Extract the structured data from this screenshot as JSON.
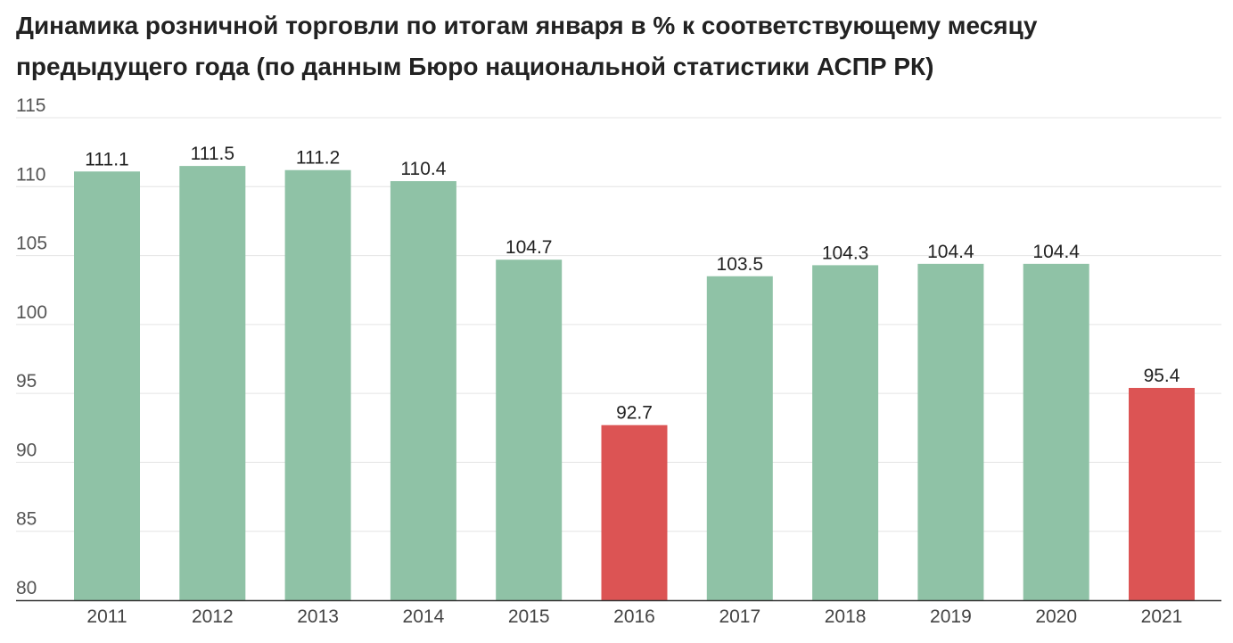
{
  "chart_data": {
    "type": "bar",
    "title": "Динамика розничной торговли по итогам января в % к соответствующему месяцу предыдущего года (по данным Бюро национальной статистики АСПР РК)",
    "categories": [
      "2011",
      "2012",
      "2013",
      "2014",
      "2015",
      "2016",
      "2017",
      "2018",
      "2019",
      "2020",
      "2021"
    ],
    "values": [
      111.1,
      111.5,
      111.2,
      110.4,
      104.7,
      92.7,
      103.5,
      104.3,
      104.4,
      104.4,
      95.4
    ],
    "data_labels": [
      "111.1",
      "111.5",
      "111.2",
      "110.4",
      "104.7",
      "92.7",
      "103.5",
      "104.3",
      "104.4",
      "104.4",
      "95.4"
    ],
    "ylim": [
      80,
      115
    ],
    "yticks": [
      80,
      85,
      90,
      95,
      100,
      105,
      110,
      115
    ],
    "ytick_labels": [
      "80",
      "85",
      "90",
      "95",
      "100",
      "105",
      "110",
      "115"
    ],
    "grid": true,
    "legend": "none",
    "colors": {
      "positive": "#8fc2a6",
      "negative": "#dc5454",
      "grid": "#e4e4e4",
      "axis": "#333333"
    }
  }
}
